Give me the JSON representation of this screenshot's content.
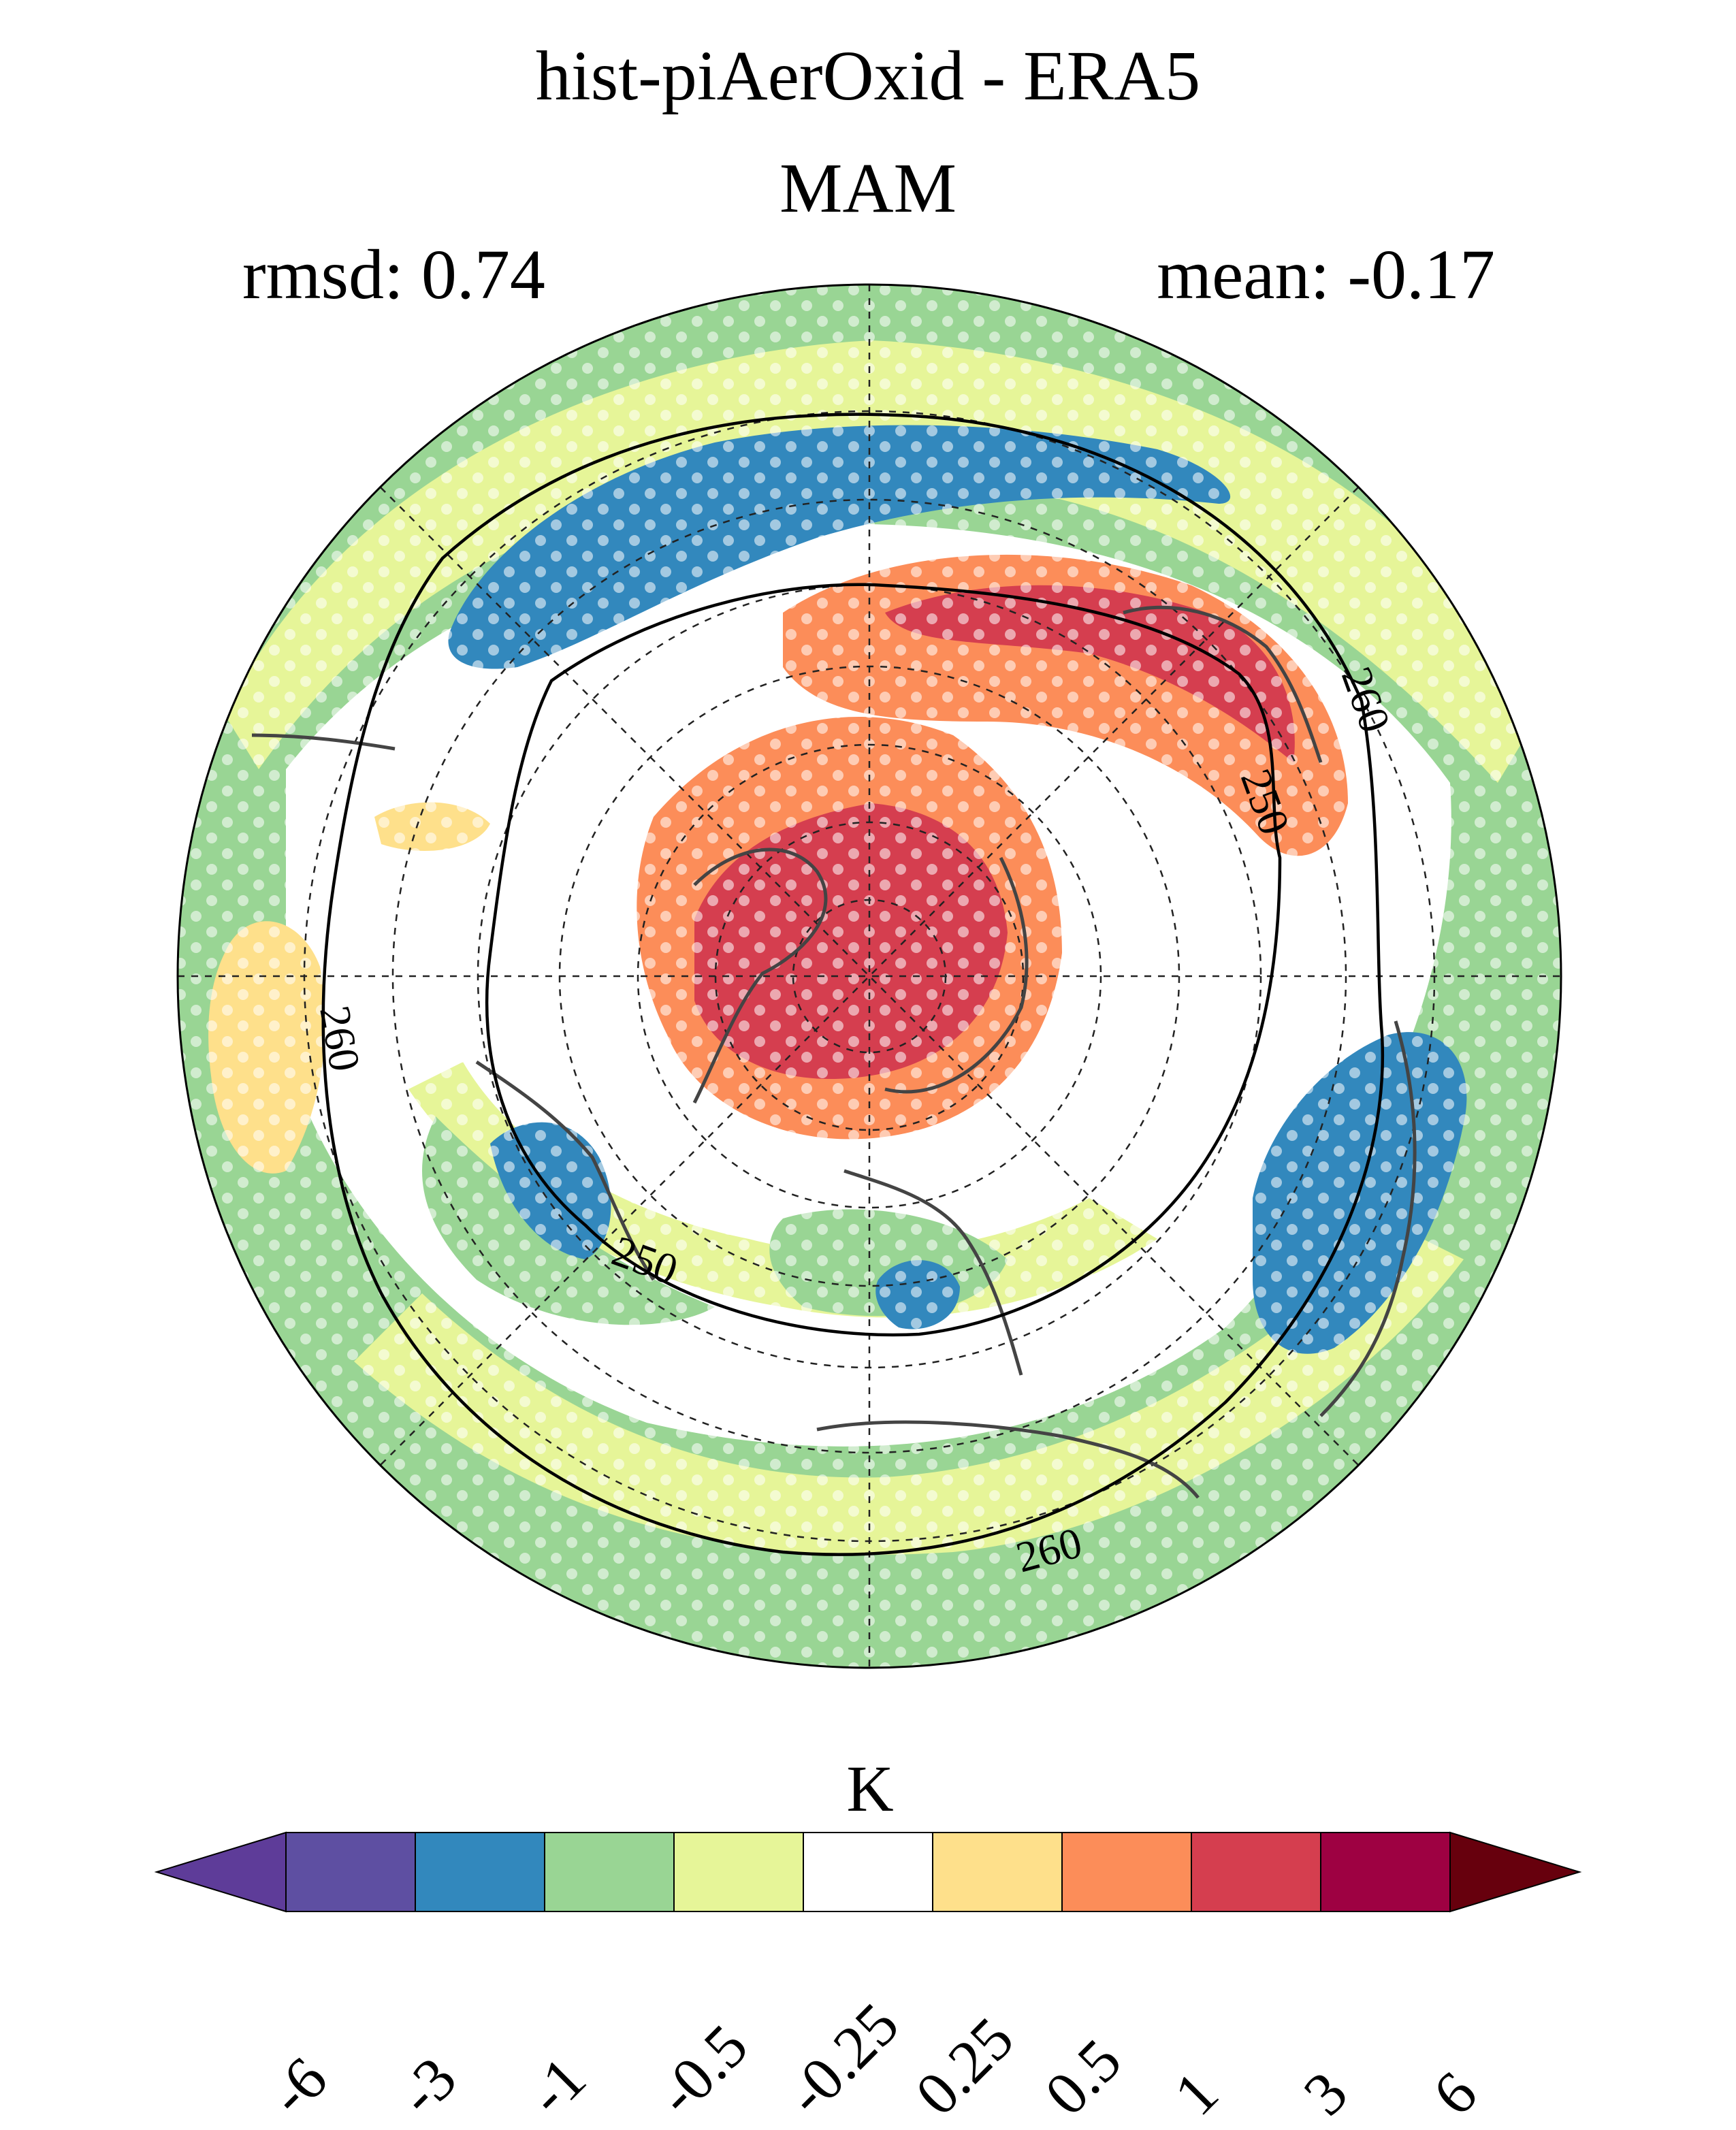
{
  "title": "hist-piAerOxid - ERA5",
  "season": "MAM",
  "stats": {
    "rmsd": "rmsd: 0.74",
    "mean": "mean: -0.17"
  },
  "map": {
    "projection": "north-polar-stereographic",
    "contour_labels": [
      "250",
      "250",
      "260",
      "260",
      "260"
    ],
    "stippling": "white dots"
  },
  "colorbar": {
    "unit": "K",
    "ticks": [
      "-6",
      "-3",
      "-1",
      "-0.5",
      "-0.25",
      "0.25",
      "0.5",
      "1",
      "3",
      "6"
    ],
    "colors": [
      "#5e3c99",
      "#5e4fa2",
      "#3288bd",
      "#99d594",
      "#e6f598",
      "#ffffff",
      "#fee08b",
      "#fc8d59",
      "#d53e4f",
      "#9e0142",
      "#67000d"
    ]
  }
}
